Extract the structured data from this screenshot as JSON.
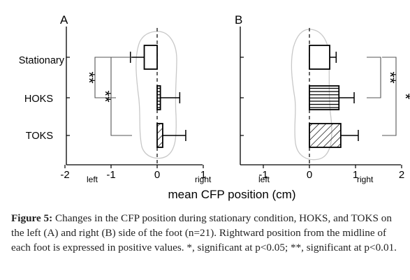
{
  "chart_data": {
    "type": "bar",
    "orientation": "horizontal",
    "xlabel": "mean CFP position (cm)",
    "categories": [
      "Stationary",
      "HOKS",
      "TOKS"
    ],
    "panels": [
      {
        "label": "A",
        "xlim": [
          -2,
          2
        ],
        "xticks": [
          {
            "value": -2,
            "label": "-2"
          },
          {
            "value": -1,
            "label": "-1"
          },
          {
            "value": 0,
            "label": "0"
          },
          {
            "value": 1,
            "label": "1"
          }
        ],
        "side_labels": {
          "left": "left",
          "right": "right"
        },
        "bars": [
          {
            "category": "Stationary",
            "value": -0.28,
            "error": 0.3,
            "pattern": "none"
          },
          {
            "category": "HOKS",
            "value": 0.07,
            "error": 0.42,
            "pattern": "horizontal"
          },
          {
            "category": "TOKS",
            "value": 0.12,
            "error": 0.5,
            "pattern": "diagonal"
          }
        ],
        "significance": [
          {
            "from": "Stationary",
            "to": "HOKS",
            "mark": "**"
          },
          {
            "from": "Stationary",
            "to": "TOKS",
            "mark": "**"
          }
        ]
      },
      {
        "label": "B",
        "xlim": [
          -2,
          2
        ],
        "xticks": [
          {
            "value": -1,
            "label": "-1"
          },
          {
            "value": 0,
            "label": "0"
          },
          {
            "value": 1,
            "label": "1"
          },
          {
            "value": 2,
            "label": "2"
          }
        ],
        "side_labels": {
          "left": "left",
          "right": "right"
        },
        "bars": [
          {
            "category": "Stationary",
            "value": 0.44,
            "error": 0.14,
            "pattern": "none"
          },
          {
            "category": "HOKS",
            "value": 0.64,
            "error": 0.33,
            "pattern": "horizontal"
          },
          {
            "category": "TOKS",
            "value": 0.68,
            "error": 0.38,
            "pattern": "diagonal"
          }
        ],
        "significance": [
          {
            "from": "Stationary",
            "to": "HOKS",
            "mark": "**"
          },
          {
            "from": "Stationary",
            "to": "TOKS",
            "mark": "*"
          }
        ]
      }
    ]
  },
  "caption": {
    "label": "Figure 5:",
    "text": " Changes in the CFP position during stationary condition, HOKS, and TOKS on the left (A) and right (B) side of the foot (n=21). Rightward position from the midline of each foot is expressed in positive values. *, significant at p<0.05; **, significant at p<0.01."
  }
}
